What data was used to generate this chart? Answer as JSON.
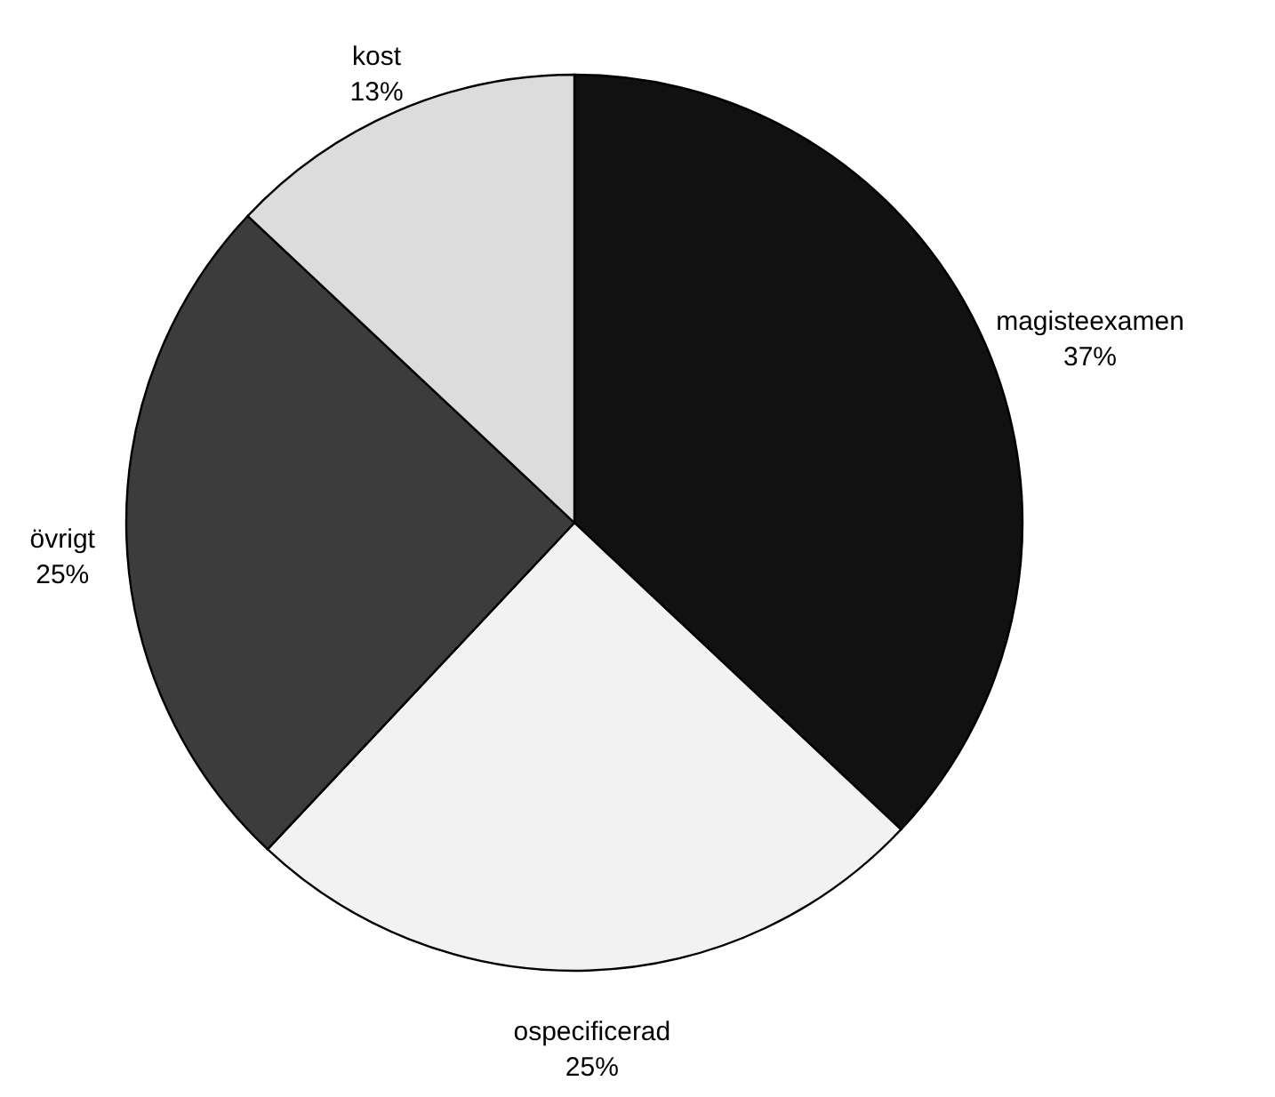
{
  "chart_data": {
    "type": "pie",
    "categories": [
      "magisteexamen",
      "ospecificerad",
      "övrigt",
      "kost"
    ],
    "values": [
      37,
      25,
      25,
      13
    ],
    "colors": [
      "#111111",
      "#f2f2f2",
      "#3c3c3c",
      "#dcdcdc"
    ],
    "value_labels": [
      "37%",
      "25%",
      "25%",
      "13%"
    ]
  }
}
